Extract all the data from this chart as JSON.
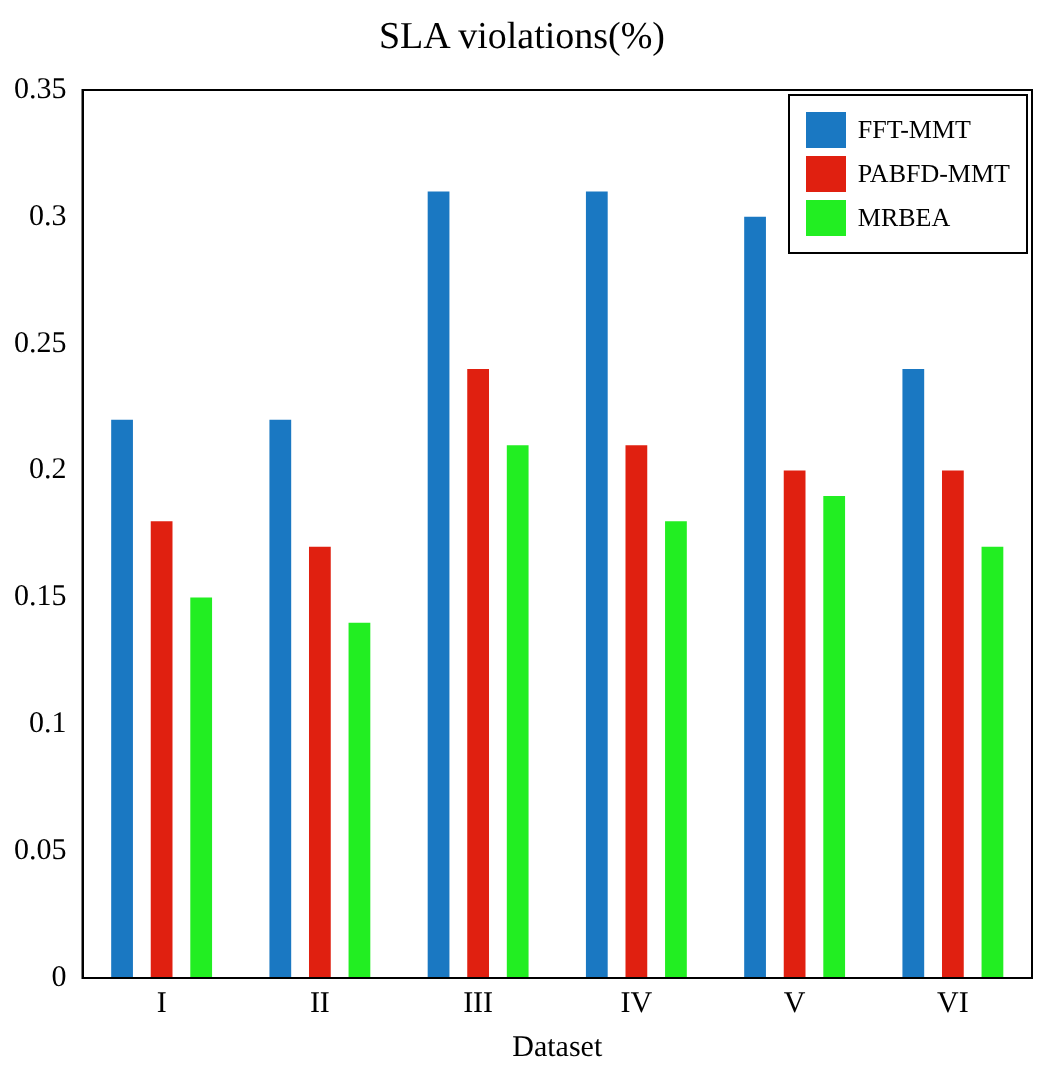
{
  "chart_data": {
    "type": "bar",
    "title": "SLA violations(%)",
    "xlabel": "Dataset",
    "categories": [
      "I",
      "II",
      "III",
      "IV",
      "V",
      "VI"
    ],
    "series": [
      {
        "name": "FFT-MMT",
        "color": "#1a78c2",
        "values": [
          0.22,
          0.22,
          0.31,
          0.31,
          0.3,
          0.24
        ]
      },
      {
        "name": "PABFD-MMT",
        "color": "#e02010",
        "values": [
          0.18,
          0.17,
          0.24,
          0.21,
          0.2,
          0.2
        ]
      },
      {
        "name": "MRBEA",
        "color": "#22ee22",
        "values": [
          0.15,
          0.14,
          0.21,
          0.18,
          0.19,
          0.17
        ]
      }
    ],
    "ylim": [
      0,
      0.35
    ],
    "yticks": [
      0,
      0.05,
      0.1,
      0.15,
      0.2,
      0.25,
      0.3,
      0.35
    ],
    "grid": false,
    "legend": "top right"
  }
}
